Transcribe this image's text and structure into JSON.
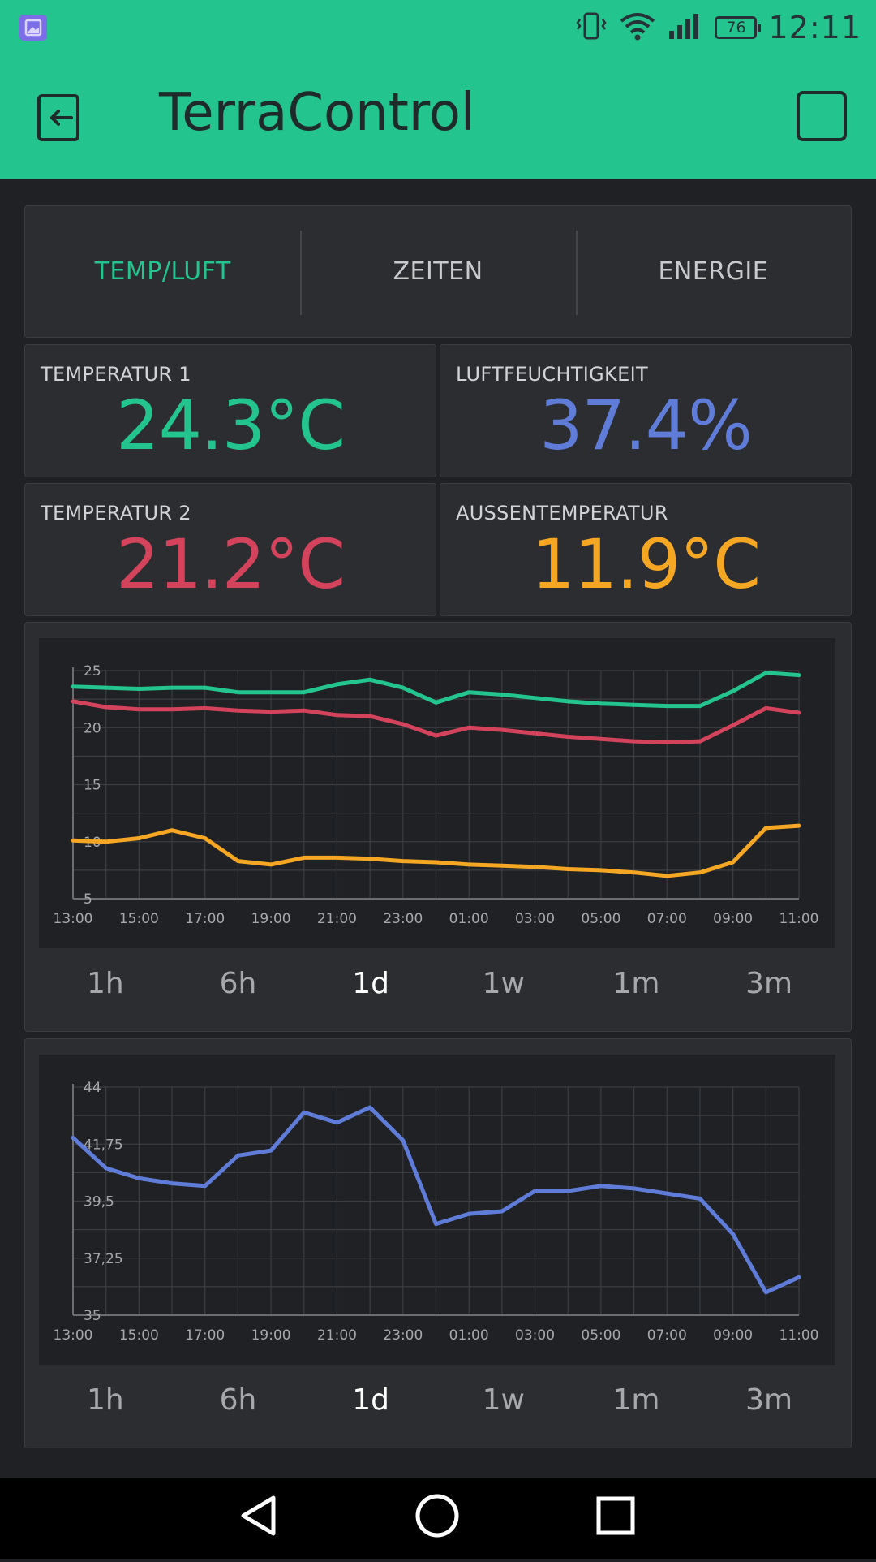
{
  "status_bar": {
    "time": "12:11",
    "battery": "76",
    "icons": [
      "gallery-icon",
      "vibrate-icon",
      "wifi-icon",
      "signal-icon",
      "battery-icon"
    ]
  },
  "app_bar": {
    "title": "TerraControl",
    "icons": [
      "exit-icon",
      "square-icon"
    ]
  },
  "tabs": [
    {
      "label": "TEMP/LUFT",
      "active": true
    },
    {
      "label": "ZEITEN",
      "active": false
    },
    {
      "label": "ENERGIE",
      "active": false
    }
  ],
  "values": [
    {
      "label": "TEMPERATUR 1",
      "value": "24.3°C",
      "color": "#23c48e"
    },
    {
      "label": "LUFTFEUCHTIGKEIT",
      "value": "37.4%",
      "color": "#5f7cd8"
    },
    {
      "label": "TEMPERATUR 2",
      "value": "21.2°C",
      "color": "#d3435c"
    },
    {
      "label": "AUSSENTEMPERATUR",
      "value": "11.9°C",
      "color": "#f5a623"
    }
  ],
  "range_options": [
    "1h",
    "6h",
    "1d",
    "1w",
    "1m",
    "3m"
  ],
  "range_selected": "1d",
  "chart_data": [
    {
      "type": "line",
      "x": [
        "13:00",
        "14:00",
        "15:00",
        "16:00",
        "17:00",
        "18:00",
        "19:00",
        "20:00",
        "21:00",
        "22:00",
        "23:00",
        "00:00",
        "01:00",
        "02:00",
        "03:00",
        "04:00",
        "05:00",
        "06:00",
        "07:00",
        "08:00",
        "09:00",
        "10:00",
        "11:00"
      ],
      "x_tick_labels": [
        "13:00",
        "15:00",
        "17:00",
        "19:00",
        "21:00",
        "23:00",
        "01:00",
        "03:00",
        "05:00",
        "07:00",
        "09:00",
        "11:00"
      ],
      "y_tick_labels": [
        "25",
        "20",
        "15",
        "10",
        "5"
      ],
      "ylim": [
        5,
        25
      ],
      "grid": true,
      "series": [
        {
          "color": "#23c48e",
          "values": [
            23.6,
            23.5,
            23.4,
            23.5,
            23.5,
            23.1,
            23.1,
            23.1,
            23.8,
            24.2,
            23.5,
            22.2,
            23.1,
            22.9,
            22.6,
            22.3,
            22.1,
            22.0,
            21.9,
            21.9,
            23.2,
            24.8,
            24.6
          ]
        },
        {
          "color": "#d3435c",
          "values": [
            22.3,
            21.8,
            21.6,
            21.6,
            21.7,
            21.5,
            21.4,
            21.5,
            21.1,
            21.0,
            20.3,
            19.3,
            20.0,
            19.8,
            19.5,
            19.2,
            19.0,
            18.8,
            18.7,
            18.8,
            20.2,
            21.7,
            21.3
          ]
        },
        {
          "color": "#f5a623",
          "values": [
            10.1,
            10.0,
            10.3,
            11.0,
            10.3,
            8.3,
            8.0,
            8.6,
            8.6,
            8.5,
            8.3,
            8.2,
            8.0,
            7.9,
            7.8,
            7.6,
            7.5,
            7.3,
            7.0,
            7.3,
            8.2,
            11.2,
            11.4
          ]
        }
      ]
    },
    {
      "type": "line",
      "x": [
        "13:00",
        "14:00",
        "15:00",
        "16:00",
        "17:00",
        "18:00",
        "19:00",
        "20:00",
        "21:00",
        "22:00",
        "23:00",
        "00:00",
        "01:00",
        "02:00",
        "03:00",
        "04:00",
        "05:00",
        "06:00",
        "07:00",
        "08:00",
        "09:00",
        "10:00",
        "11:00"
      ],
      "x_tick_labels": [
        "13:00",
        "15:00",
        "17:00",
        "19:00",
        "21:00",
        "23:00",
        "01:00",
        "03:00",
        "05:00",
        "07:00",
        "09:00",
        "11:00"
      ],
      "y_tick_labels": [
        "44",
        "41,75",
        "39,5",
        "37,25",
        "35"
      ],
      "ylim": [
        35,
        44
      ],
      "grid": true,
      "series": [
        {
          "color": "#5f7cd8",
          "values": [
            42.0,
            40.8,
            40.4,
            40.2,
            40.1,
            41.3,
            41.5,
            43.0,
            42.6,
            43.2,
            41.9,
            38.6,
            39.0,
            39.1,
            39.9,
            39.9,
            40.1,
            40.0,
            39.8,
            39.6,
            38.2,
            35.9,
            36.5
          ]
        }
      ]
    }
  ]
}
